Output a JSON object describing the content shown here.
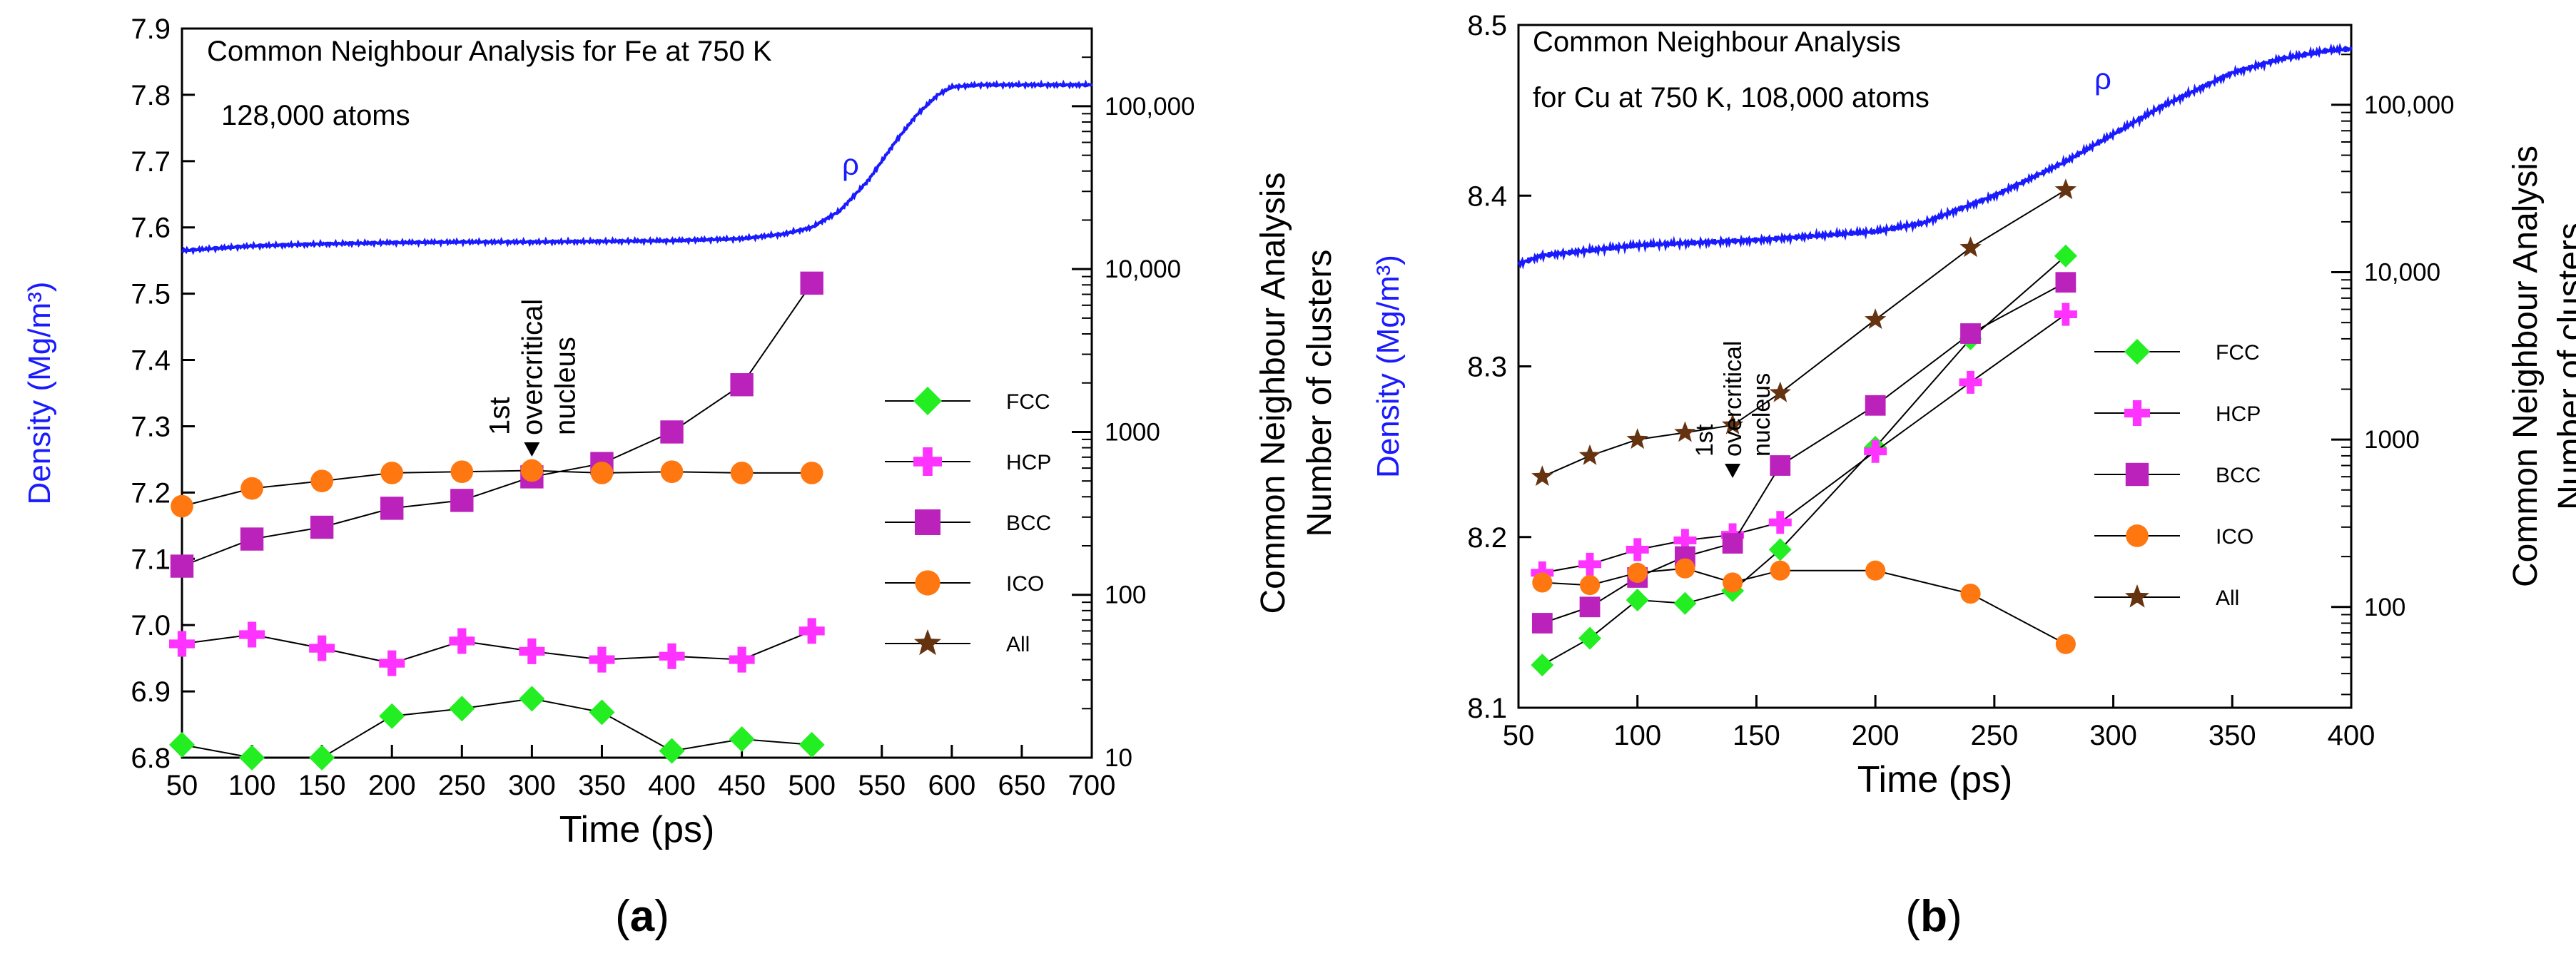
{
  "chart_data": [
    {
      "panel_label": "(a)",
      "type": "line",
      "title": "Common Neighbour Analysis for Fe at 750 K",
      "subtitle": "128,000 atoms",
      "xlabel": "Time (ps)",
      "ylabel_left": "Density (Mg/m³)",
      "ylabel_right": [
        "Common Neighbour Analysis",
        "Number of clusters"
      ],
      "xlim": [
        50,
        700
      ],
      "ylim_left": [
        6.8,
        7.9
      ],
      "ylim_right": [
        10,
        300000
      ],
      "right_scale": "log",
      "x_ticks": [
        "50",
        "100",
        "150",
        "200",
        "250",
        "300",
        "350",
        "400",
        "450",
        "500",
        "550",
        "600",
        "650",
        "700"
      ],
      "y_left_ticks": [
        "6.8",
        "6.9",
        "7.0",
        "7.1",
        "7.2",
        "7.3",
        "7.4",
        "7.5",
        "7.6",
        "7.7",
        "7.8",
        "7.9"
      ],
      "y_right_ticks": [
        "10",
        "100",
        "1000",
        "10,000",
        "100,000"
      ],
      "rho_label": "ρ",
      "annotation": [
        "1st",
        "overcritical",
        "nucleus"
      ],
      "annotation_x": 300,
      "density": {
        "name": "ρ",
        "x": [
          50,
          100,
          150,
          200,
          250,
          300,
          350,
          400,
          450,
          480,
          500,
          520,
          540,
          560,
          575,
          590,
          600,
          620,
          650,
          700
        ],
        "y": [
          7.565,
          7.572,
          7.575,
          7.577,
          7.578,
          7.578,
          7.579,
          7.58,
          7.583,
          7.59,
          7.6,
          7.625,
          7.67,
          7.73,
          7.77,
          7.8,
          7.812,
          7.815,
          7.815,
          7.815
        ]
      },
      "series": [
        {
          "name": "FCC",
          "color": "#22ee22",
          "marker": "diamond",
          "x": [
            50,
            100,
            150,
            200,
            250,
            300,
            350,
            400,
            450,
            500
          ],
          "values": [
            12,
            10,
            10,
            18,
            20,
            23,
            19,
            11,
            13,
            12
          ]
        },
        {
          "name": "HCP",
          "color": "#ff33ff",
          "marker": "plus",
          "x": [
            50,
            100,
            150,
            200,
            250,
            300,
            350,
            400,
            450,
            500
          ],
          "values": [
            50,
            57,
            47,
            38,
            52,
            45,
            40,
            42,
            40,
            60
          ]
        },
        {
          "name": "BCC",
          "color": "#bb22bb",
          "marker": "square",
          "x": [
            50,
            100,
            150,
            200,
            250,
            300,
            350,
            400,
            450,
            500
          ],
          "values": [
            150,
            220,
            260,
            340,
            380,
            530,
            640,
            1000,
            1950,
            8200
          ]
        },
        {
          "name": "ICO",
          "color": "#ff7711",
          "marker": "circle",
          "x": [
            50,
            100,
            150,
            200,
            250,
            300,
            350,
            400,
            450,
            500
          ],
          "values": [
            350,
            450,
            500,
            560,
            570,
            580,
            560,
            570,
            560,
            560
          ]
        },
        {
          "name": "All",
          "color": "#663311",
          "marker": "star",
          "x": [],
          "values": []
        }
      ]
    },
    {
      "panel_label": "(b)",
      "type": "line",
      "title": "Common Neighbour Analysis",
      "subtitle": "for Cu at 750 K, 108,000 atoms",
      "xlabel": "Time (ps)",
      "ylabel_left": "Density (Mg/m³)",
      "ylabel_right": [
        "Common Neighbour Analysis",
        "Number of clusters"
      ],
      "xlim": [
        50,
        400
      ],
      "ylim_left": [
        8.1,
        8.5
      ],
      "ylim_right": [
        25,
        300000
      ],
      "right_scale": "log",
      "x_ticks": [
        "50",
        "100",
        "150",
        "200",
        "250",
        "300",
        "350",
        "400"
      ],
      "y_left_ticks": [
        "8.1",
        "8.2",
        "8.3",
        "8.4",
        "8.5"
      ],
      "y_right_ticks": [
        "100",
        "1000",
        "10,000",
        "100,000"
      ],
      "rho_label": "ρ",
      "annotation": [
        "1st",
        "overcritical",
        "nucleus"
      ],
      "annotation_x": 140,
      "density": {
        "name": "ρ",
        "x": [
          50,
          60,
          80,
          100,
          150,
          200,
          220,
          250,
          280,
          300,
          320,
          350,
          370,
          390,
          400
        ],
        "y": [
          8.36,
          8.365,
          8.368,
          8.371,
          8.374,
          8.379,
          8.384,
          8.4,
          8.42,
          8.436,
          8.452,
          8.472,
          8.48,
          8.485,
          8.486
        ]
      },
      "series": [
        {
          "name": "FCC",
          "color": "#22ee22",
          "marker": "diamond",
          "x": [
            60,
            80,
            100,
            120,
            140,
            160,
            200,
            240,
            280
          ],
          "values": [
            45,
            65,
            110,
            105,
            125,
            220,
            900,
            4000,
            12500
          ]
        },
        {
          "name": "HCP",
          "color": "#ff33ff",
          "marker": "plus",
          "x": [
            60,
            80,
            100,
            120,
            140,
            160,
            200,
            240,
            280
          ],
          "values": [
            160,
            180,
            220,
            250,
            270,
            320,
            850,
            2200,
            5600
          ]
        },
        {
          "name": "BCC",
          "color": "#bb22bb",
          "marker": "square",
          "x": [
            60,
            80,
            100,
            120,
            140,
            160,
            200,
            240,
            280
          ],
          "values": [
            80,
            100,
            150,
            200,
            240,
            700,
            1600,
            4300,
            8700
          ]
        },
        {
          "name": "ICO",
          "color": "#ff7711",
          "marker": "circle",
          "x": [
            60,
            80,
            100,
            120,
            140,
            160,
            200,
            240,
            280
          ],
          "values": [
            140,
            135,
            160,
            170,
            140,
            165,
            165,
            120,
            60
          ]
        },
        {
          "name": "All",
          "color": "#663311",
          "marker": "star",
          "x": [
            60,
            80,
            100,
            120,
            140,
            160,
            200,
            240,
            280
          ],
          "values": [
            600,
            800,
            1000,
            1100,
            1220,
            1900,
            5200,
            14000,
            31000
          ]
        }
      ]
    }
  ]
}
